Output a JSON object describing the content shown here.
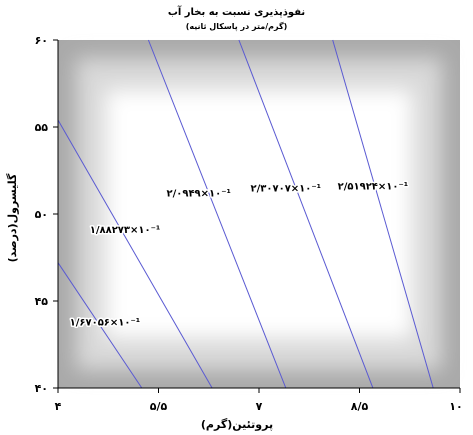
{
  "chart_data": {
    "type": "contour",
    "title": "نفوذپذیری نسبت به بخار آب",
    "subtitle": "(گرم/متر در پاسکال ثانیه)",
    "xlabel": "پروتئین(گرم)",
    "ylabel": "گلیسرول(درصد)",
    "xlim": [
      4,
      10
    ],
    "ylim": [
      40,
      60
    ],
    "x_ticks": [
      {
        "value": 4,
        "label": "۴"
      },
      {
        "value": 5.5,
        "label": "۵/۵"
      },
      {
        "value": 7,
        "label": "۷"
      },
      {
        "value": 8.5,
        "label": "۸/۵"
      },
      {
        "value": 10,
        "label": "۱۰"
      }
    ],
    "y_ticks": [
      {
        "value": 40,
        "label": "۴۰"
      },
      {
        "value": 45,
        "label": "۴۵"
      },
      {
        "value": 50,
        "label": "۵۰"
      },
      {
        "value": 55,
        "label": "۵۵"
      },
      {
        "value": 60,
        "label": "۶۰"
      }
    ],
    "contours": [
      {
        "label": "۱/۶۷۰۵۶×۱۰⁻¹",
        "points": [
          [
            4.0,
            47.2
          ],
          [
            5.25,
            40.0
          ]
        ],
        "label_at": [
          4.7,
          43.6
        ]
      },
      {
        "label": "۱/۸۸۲۷۳×۱۰⁻¹",
        "points": [
          [
            4.0,
            55.4
          ],
          [
            6.3,
            40.0
          ]
        ],
        "label_at": [
          5.0,
          48.9
        ]
      },
      {
        "label": "۲/۰۹۴۹×۱۰⁻¹",
        "points": [
          [
            5.35,
            60.0
          ],
          [
            7.4,
            40.0
          ]
        ],
        "label_at": [
          6.1,
          51.0
        ]
      },
      {
        "label": "۲/۳۰۷۰۷×۱۰⁻¹",
        "points": [
          [
            6.7,
            60.0
          ],
          [
            8.7,
            40.0
          ]
        ],
        "label_at": [
          7.4,
          51.3
        ]
      },
      {
        "label": "۲/۵۱۹۲۴×۱۰⁻¹",
        "points": [
          [
            8.1,
            60.0
          ],
          [
            9.6,
            40.0
          ]
        ],
        "label_at": [
          8.7,
          51.4
        ]
      }
    ],
    "contour_color": "#5a5ad2",
    "grid": false
  }
}
